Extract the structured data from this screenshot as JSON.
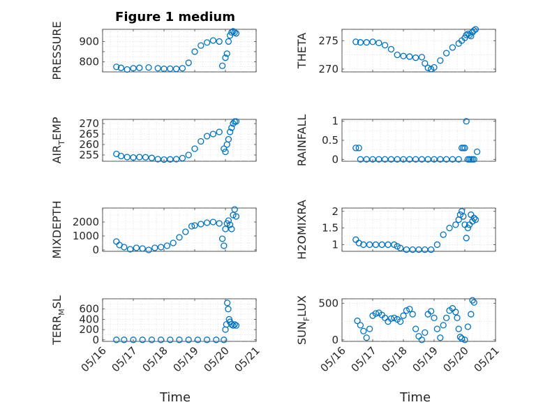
{
  "title": "Figure 1 medium",
  "xlabel": "Time",
  "date_ticks": [
    "05/16",
    "05/17",
    "05/18",
    "05/19",
    "05/20",
    "05/21"
  ],
  "colors": {
    "marker": "#0072BD",
    "axes": "#262626",
    "grid": "#d9d9d9"
  },
  "chart_data": [
    {
      "type": "scatter",
      "id": "pressure",
      "ylabel": "PRESSURE",
      "xlim": [
        "05/16",
        "05/21"
      ],
      "ylim": [
        750,
        960
      ],
      "yticks": [
        800,
        850,
        900
      ],
      "yticklabels": [
        "800",
        "",
        "900"
      ],
      "x_days": [
        0.45,
        0.6,
        0.8,
        1.0,
        1.2,
        1.5,
        1.8,
        2.0,
        2.2,
        2.4,
        2.6,
        2.8,
        3.0,
        3.2,
        3.4,
        3.6,
        3.8,
        3.9,
        4.0,
        4.05,
        4.1,
        4.15,
        4.2,
        4.25,
        4.3,
        4.35
      ],
      "y": [
        775,
        770,
        762,
        768,
        770,
        772,
        768,
        765,
        766,
        765,
        768,
        795,
        850,
        880,
        895,
        905,
        900,
        780,
        820,
        840,
        900,
        930,
        945,
        950,
        945,
        940
      ],
      "grid": true
    },
    {
      "type": "scatter",
      "id": "theta",
      "ylabel": "THETA",
      "xlim": [
        "05/16",
        "05/21"
      ],
      "ylim": [
        269.5,
        277
      ],
      "yticks": [
        270,
        275
      ],
      "yticklabels": [
        "270",
        "275"
      ],
      "x_days": [
        0.45,
        0.6,
        0.8,
        1.0,
        1.2,
        1.4,
        1.6,
        1.8,
        2.0,
        2.2,
        2.4,
        2.6,
        2.7,
        2.8,
        2.9,
        3.0,
        3.2,
        3.4,
        3.6,
        3.8,
        3.9,
        4.0,
        4.05,
        4.1,
        4.15,
        4.2,
        4.25,
        4.3,
        4.35
      ],
      "y": [
        274.8,
        274.7,
        274.7,
        274.8,
        274.6,
        274.2,
        273.5,
        272.5,
        272.3,
        272.2,
        272.0,
        272.1,
        271.0,
        270.2,
        270.0,
        270.3,
        271.5,
        272.8,
        273.8,
        274.5,
        275.0,
        275.5,
        276.0,
        276.2,
        276.0,
        275.8,
        276.5,
        276.8,
        277.0
      ],
      "grid": true
    },
    {
      "type": "scatter",
      "id": "air_temp",
      "ylabel": "AIR_TEMP",
      "xlim": [
        "05/16",
        "05/21"
      ],
      "ylim": [
        252,
        272
      ],
      "yticks": [
        255,
        260,
        265,
        270
      ],
      "yticklabels": [
        "255",
        "260",
        "265",
        "270"
      ],
      "x_days": [
        0.45,
        0.6,
        0.8,
        1.0,
        1.2,
        1.4,
        1.6,
        1.8,
        2.0,
        2.2,
        2.4,
        2.6,
        2.8,
        3.0,
        3.2,
        3.4,
        3.6,
        3.8,
        3.95,
        4.0,
        4.05,
        4.1,
        4.15,
        4.2,
        4.25,
        4.3,
        4.35
      ],
      "y": [
        255.5,
        254.5,
        254.0,
        253.8,
        254.0,
        253.9,
        253.6,
        253.0,
        252.8,
        252.9,
        253.0,
        253.5,
        255.0,
        258.0,
        261.5,
        264.0,
        265.0,
        266.0,
        258.0,
        256.5,
        260.0,
        262.5,
        266.0,
        268.0,
        270.0,
        271.0,
        271.0
      ],
      "grid": true
    },
    {
      "type": "scatter",
      "id": "rainfall",
      "ylabel": "RAINFALL",
      "xlim": [
        "05/16",
        "05/21"
      ],
      "ylim": [
        -0.05,
        1.05
      ],
      "yticks": [
        0,
        0.5,
        1
      ],
      "yticklabels": [
        "0",
        "0.5",
        "1"
      ],
      "x_days": [
        0.45,
        0.55,
        0.6,
        0.8,
        1.0,
        1.2,
        1.4,
        1.6,
        1.8,
        2.0,
        2.2,
        2.4,
        2.6,
        2.8,
        3.0,
        3.2,
        3.4,
        3.6,
        3.8,
        3.9,
        3.95,
        4.0,
        4.05,
        4.1,
        4.15,
        4.2,
        4.25,
        4.3,
        4.4
      ],
      "y": [
        0.3,
        0.3,
        0,
        0,
        0,
        0,
        0,
        0,
        0,
        0,
        0,
        0,
        0,
        0,
        0,
        0,
        0,
        0,
        0,
        0.3,
        0.3,
        0.3,
        1.0,
        0,
        0,
        0,
        0,
        0,
        0.2
      ],
      "grid": true
    },
    {
      "type": "scatter",
      "id": "mixdepth",
      "ylabel": "MIXDEPTH",
      "xlim": [
        "05/16",
        "05/21"
      ],
      "ylim": [
        -100,
        3000
      ],
      "yticks": [
        0,
        1000,
        2000
      ],
      "yticklabels": [
        "0",
        "1000",
        "2000"
      ],
      "x_days": [
        0.45,
        0.55,
        0.7,
        0.9,
        1.1,
        1.3,
        1.5,
        1.7,
        1.9,
        2.1,
        2.3,
        2.5,
        2.7,
        2.9,
        3.0,
        3.2,
        3.4,
        3.6,
        3.8,
        3.9,
        3.95,
        4.0,
        4.05,
        4.1,
        4.15,
        4.2,
        4.25,
        4.3,
        4.35
      ],
      "y": [
        600,
        350,
        200,
        50,
        150,
        100,
        0,
        150,
        200,
        300,
        500,
        900,
        1300,
        1700,
        1750,
        1850,
        1950,
        2000,
        1900,
        800,
        300,
        1500,
        1900,
        2100,
        1800,
        1500,
        2500,
        2900,
        2400
      ],
      "grid": true
    },
    {
      "type": "scatter",
      "id": "h2omixra",
      "ylabel": "H2OMIXRA",
      "xlim": [
        "05/16",
        "05/21"
      ],
      "ylim": [
        0.8,
        2.1
      ],
      "yticks": [
        1,
        1.5,
        2
      ],
      "yticklabels": [
        "1",
        "1.5",
        "2"
      ],
      "x_days": [
        0.45,
        0.55,
        0.7,
        0.9,
        1.1,
        1.3,
        1.5,
        1.7,
        1.8,
        1.9,
        2.1,
        2.3,
        2.5,
        2.7,
        2.9,
        3.1,
        3.3,
        3.5,
        3.7,
        3.8,
        3.85,
        3.9,
        3.95,
        4.0,
        4.05,
        4.1,
        4.15,
        4.2,
        4.25,
        4.3,
        4.35
      ],
      "y": [
        1.15,
        1.05,
        1.0,
        1.0,
        1.0,
        1.0,
        1.0,
        1.0,
        0.95,
        0.9,
        0.85,
        0.85,
        0.85,
        0.85,
        0.85,
        1.0,
        1.3,
        1.5,
        1.6,
        1.75,
        1.9,
        2.0,
        1.85,
        1.6,
        1.2,
        1.5,
        1.6,
        1.9,
        1.7,
        1.8,
        1.75
      ],
      "grid": true
    },
    {
      "type": "scatter",
      "id": "terr_msl",
      "ylabel": "TERR_MSL",
      "xlim": [
        "05/16",
        "05/21"
      ],
      "ylim": [
        -30,
        800
      ],
      "yticks": [
        0,
        200,
        400,
        600
      ],
      "yticklabels": [
        "0",
        "200",
        "400",
        "600"
      ],
      "x_days": [
        0.45,
        0.7,
        1.0,
        1.3,
        1.6,
        1.9,
        2.2,
        2.5,
        2.8,
        3.1,
        3.4,
        3.7,
        3.95,
        4.0,
        4.03,
        4.06,
        4.09,
        4.12,
        4.15,
        4.2,
        4.25,
        4.3,
        4.35
      ],
      "y": [
        0,
        0,
        0,
        0,
        0,
        0,
        0,
        0,
        0,
        0,
        0,
        0,
        0,
        200,
        300,
        720,
        600,
        400,
        350,
        300,
        280,
        300,
        280
      ],
      "grid": true
    },
    {
      "type": "scatter",
      "id": "sun_flux",
      "ylabel": "SUN_FLUX",
      "xlim": [
        "05/16",
        "05/21"
      ],
      "ylim": [
        -20,
        560
      ],
      "yticks": [
        0,
        500
      ],
      "yticklabels": [
        "0",
        "500"
      ],
      "x_days": [
        0.5,
        0.6,
        0.7,
        0.8,
        0.9,
        1.0,
        1.1,
        1.2,
        1.3,
        1.4,
        1.5,
        1.6,
        1.7,
        1.8,
        1.9,
        2.0,
        2.1,
        2.2,
        2.3,
        2.4,
        2.5,
        2.6,
        2.7,
        2.8,
        2.9,
        3.0,
        3.1,
        3.2,
        3.3,
        3.4,
        3.5,
        3.6,
        3.7,
        3.75,
        3.8,
        3.85,
        3.9,
        4.0,
        4.1,
        4.2,
        4.25,
        4.3
      ],
      "y": [
        260,
        200,
        120,
        30,
        150,
        330,
        360,
        370,
        340,
        300,
        250,
        290,
        300,
        280,
        250,
        330,
        400,
        420,
        350,
        150,
        50,
        0,
        100,
        350,
        390,
        300,
        150,
        30,
        200,
        300,
        400,
        430,
        380,
        300,
        150,
        40,
        20,
        0,
        180,
        350,
        540,
        510
      ],
      "grid": true
    }
  ]
}
